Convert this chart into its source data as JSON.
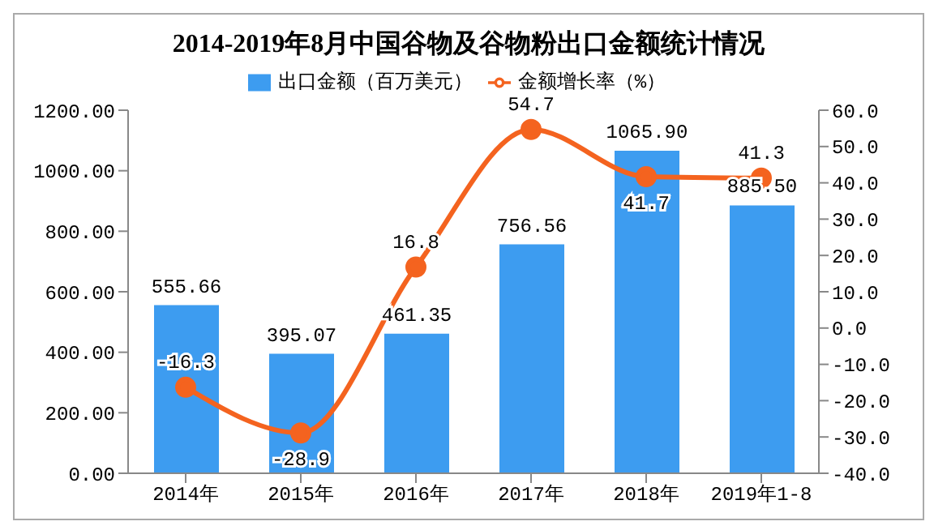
{
  "chart_data": {
    "type": "bar",
    "title": "2014-2019年8月中国谷物及谷物粉出口金额统计情况",
    "categories": [
      "2014年",
      "2015年",
      "2016年",
      "2017年",
      "2018年",
      "2019年1-8"
    ],
    "series": [
      {
        "name": "出口金额（百万美元）",
        "color": "#3d9cf0",
        "values": [
          555.66,
          395.07,
          461.35,
          756.56,
          1065.9,
          885.5
        ],
        "value_labels": [
          "555.66",
          "395.07",
          "461.35",
          "756.56",
          "1065.90",
          "885.50"
        ]
      },
      {
        "name": "金额增长率（%）",
        "type": "line",
        "axis": "y2",
        "color": "#f4631f",
        "values": [
          -16.3,
          -28.9,
          16.8,
          54.7,
          41.7,
          41.3
        ],
        "value_labels": [
          "-16.3",
          "-28.9",
          "16.8",
          "54.7",
          "41.7",
          "41.3"
        ]
      }
    ],
    "ylim": [
      0,
      1200
    ],
    "yticks": [
      {
        "value": 0,
        "label": "0.00"
      },
      {
        "value": 200,
        "label": "200.00"
      },
      {
        "value": 400,
        "label": "400.00"
      },
      {
        "value": 600,
        "label": "600.00"
      },
      {
        "value": 800,
        "label": "800.00"
      },
      {
        "value": 1000,
        "label": "1000.00"
      },
      {
        "value": 1200,
        "label": "1200.00"
      }
    ],
    "y2lim": [
      -40,
      60
    ],
    "y2ticks": [
      {
        "value": -40,
        "label": "-40.0"
      },
      {
        "value": -30,
        "label": "-30.0"
      },
      {
        "value": -20,
        "label": "-20.0"
      },
      {
        "value": -10,
        "label": "-10.0"
      },
      {
        "value": 0,
        "label": "0.0"
      },
      {
        "value": 10,
        "label": "10.0"
      },
      {
        "value": 20,
        "label": "20.0"
      },
      {
        "value": 30,
        "label": "30.0"
      },
      {
        "value": 40,
        "label": "40.0"
      },
      {
        "value": 50,
        "label": "50.0"
      },
      {
        "value": 60,
        "label": "60.0"
      }
    ],
    "legend": "top",
    "grid": false,
    "marker": "circle"
  }
}
